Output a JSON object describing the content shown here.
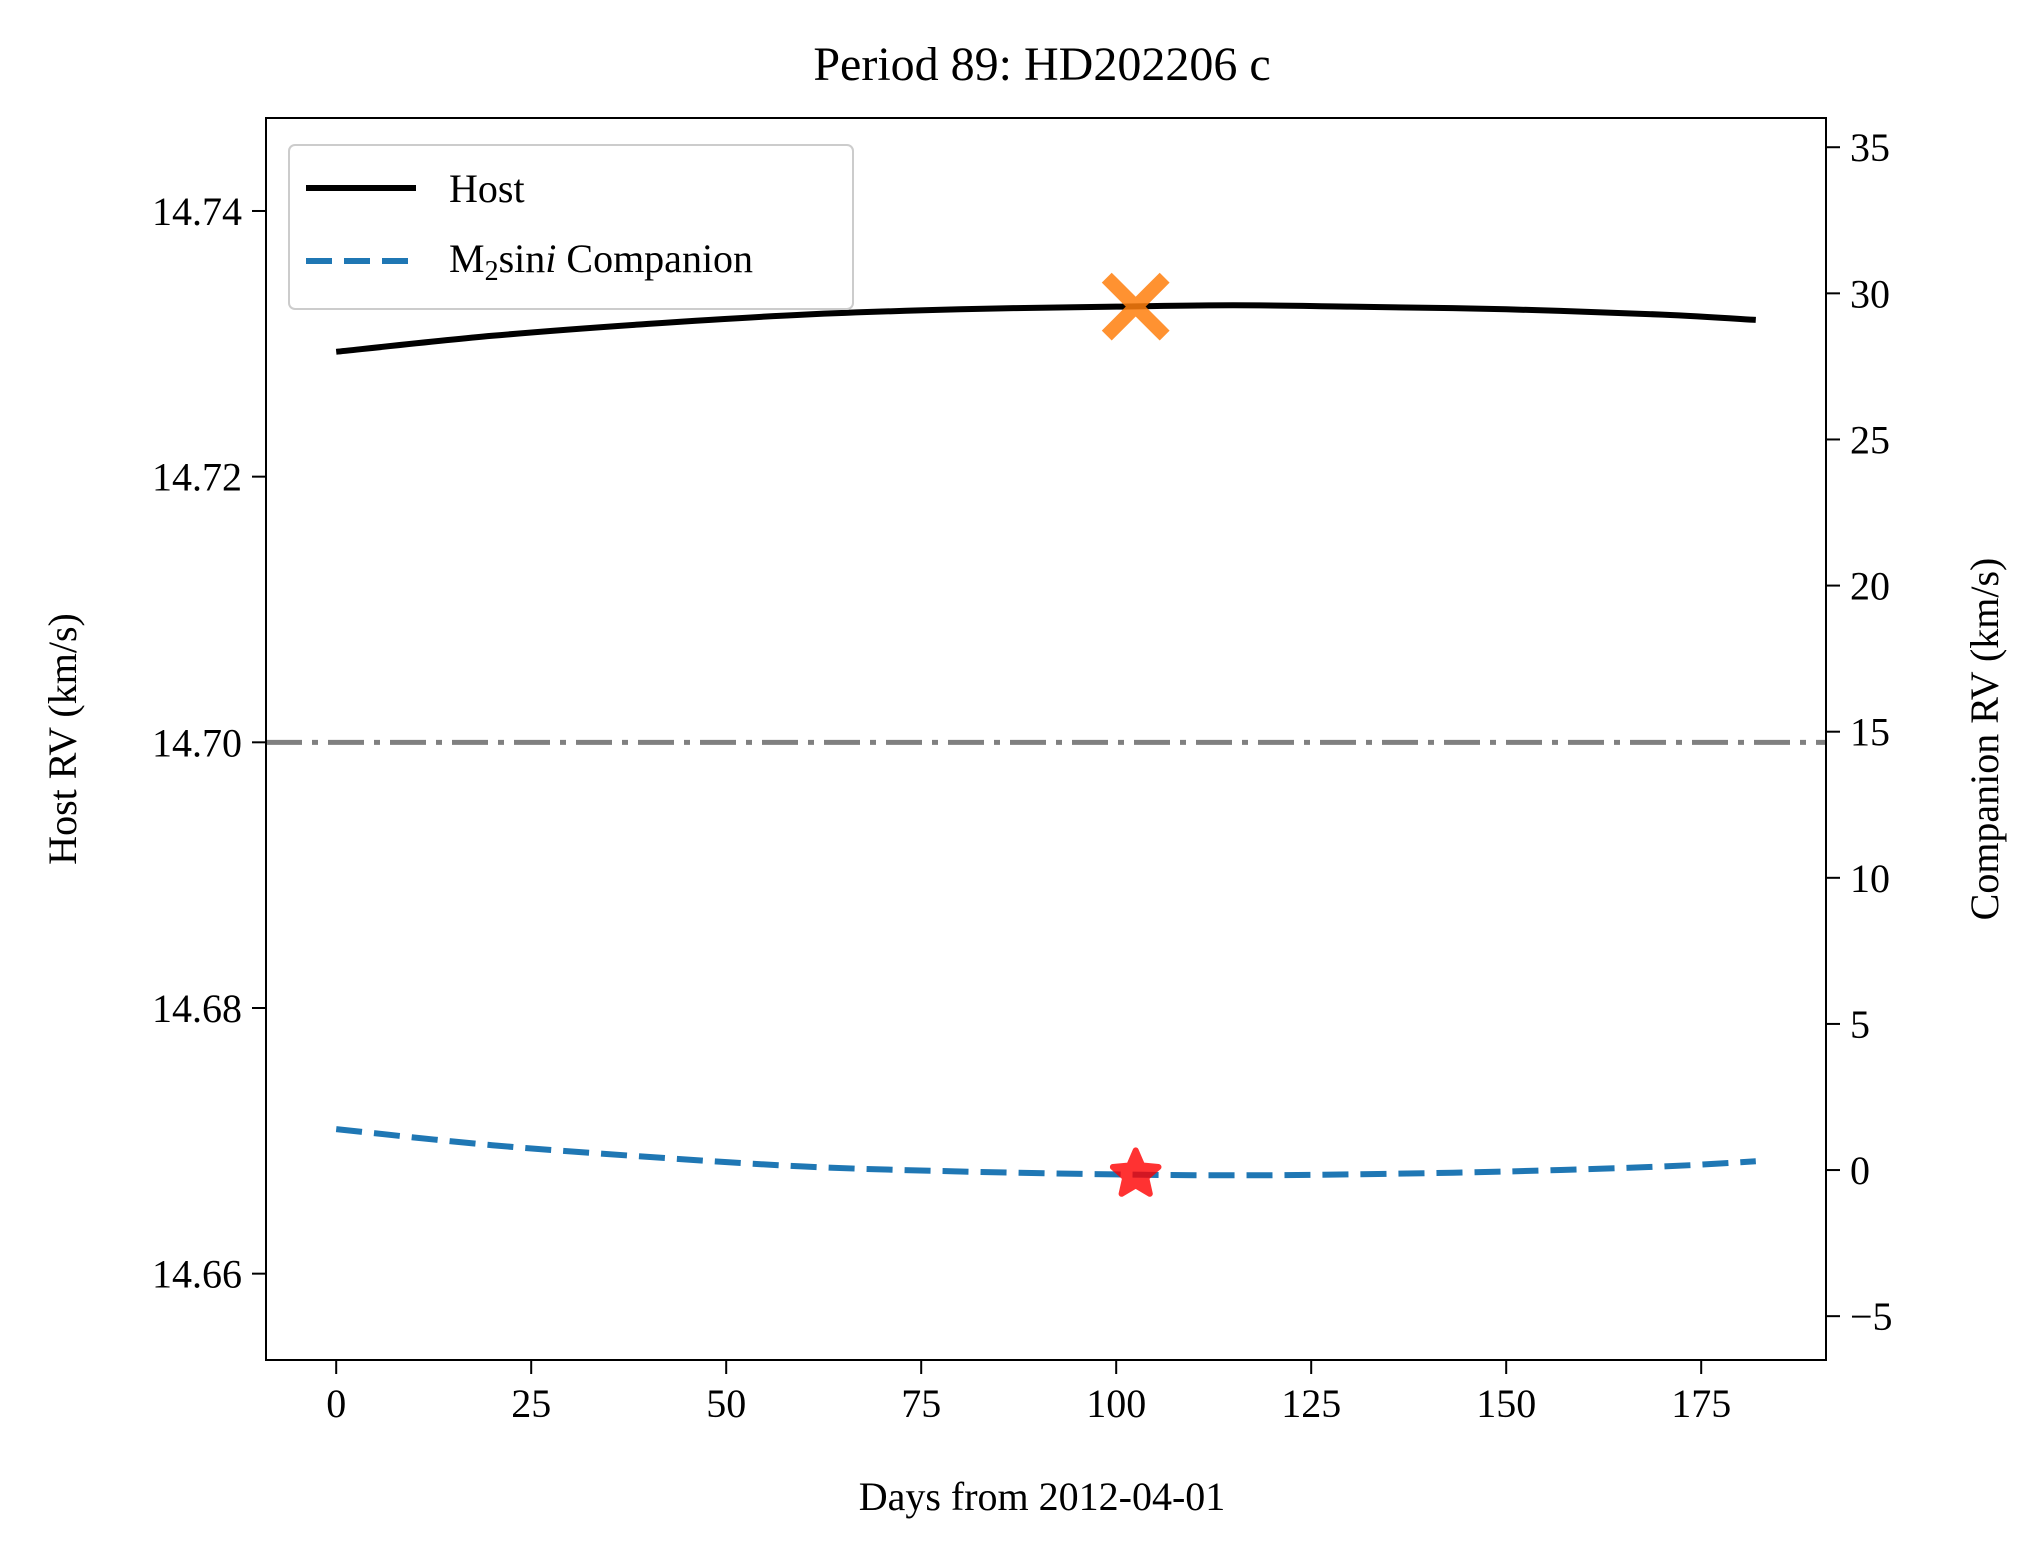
{
  "chart_data": {
    "type": "line",
    "title": "Period 89: HD202206 c",
    "xlabel": "Days from 2012-04-01",
    "ylabel_left": "Host RV (km/s)",
    "ylabel_right": "Companion RV (km/s)",
    "xlim": [
      -9,
      191
    ],
    "ylim_left": [
      14.6535,
      14.747
    ],
    "ylim_right": [
      -6.5,
      36
    ],
    "x_ticks": [
      0,
      25,
      50,
      75,
      100,
      125,
      150,
      175
    ],
    "x_tick_labels": [
      "0",
      "25",
      "50",
      "75",
      "100",
      "125",
      "150",
      "175"
    ],
    "y_left_ticks": [
      14.66,
      14.68,
      14.7,
      14.72,
      14.74
    ],
    "y_left_tick_labels": [
      "14.66",
      "14.68",
      "14.70",
      "14.72",
      "14.74"
    ],
    "y_right_ticks": [
      -5,
      0,
      5,
      10,
      15,
      20,
      25,
      30,
      35
    ],
    "y_right_tick_labels": [
      "−5",
      "0",
      "5",
      "10",
      "15",
      "20",
      "25",
      "30",
      "35"
    ],
    "grid": false,
    "legend_position": "upper-left",
    "legend": {
      "host": "Host",
      "companion_prefix": "M",
      "companion_sub": "2",
      "companion_mid": "sin",
      "companion_italic": "i",
      "companion_suffix": " Companion"
    },
    "series": [
      {
        "name": "Host",
        "axis": "left",
        "color": "#000000",
        "style": "solid",
        "x": [
          0,
          20,
          40,
          60,
          80,
          100,
          115,
          130,
          150,
          170,
          182
        ],
        "y": [
          14.7294,
          14.7306,
          14.7315,
          14.7322,
          14.7326,
          14.7328,
          14.7329,
          14.7328,
          14.7326,
          14.7322,
          14.7318
        ]
      },
      {
        "name": "M2sini Companion",
        "axis": "right",
        "color": "#1f77b4",
        "style": "dashed",
        "x": [
          0,
          20,
          40,
          60,
          80,
          100,
          115,
          130,
          150,
          170,
          182
        ],
        "y": [
          1.4,
          0.85,
          0.45,
          0.12,
          -0.05,
          -0.15,
          -0.18,
          -0.15,
          -0.05,
          0.12,
          0.3
        ]
      }
    ],
    "reference_line": {
      "axis": "left",
      "y": 14.7,
      "color": "#808080",
      "style": "dashdot"
    },
    "markers": [
      {
        "axis": "left",
        "x": 102.5,
        "y": 14.7328,
        "symbol": "x",
        "color": "#ff7f0e"
      },
      {
        "axis": "right",
        "x": 102.5,
        "y": -0.15,
        "symbol": "star",
        "color": "#ff0000"
      }
    ]
  }
}
